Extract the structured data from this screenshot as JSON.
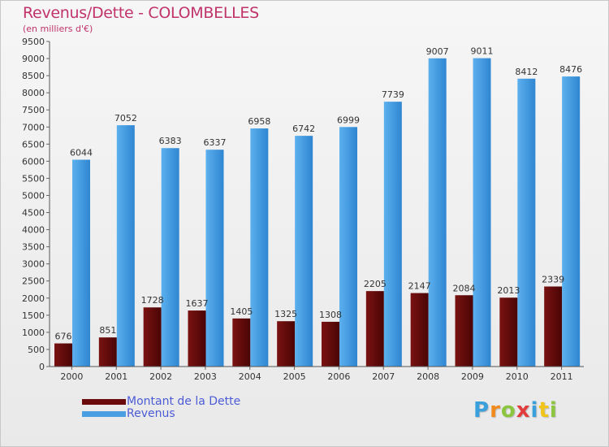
{
  "chart_data": {
    "type": "bar",
    "title": "Revenus/Dette - COLOMBELLES",
    "subtitle": "(en milliers d'€)",
    "categories": [
      "2000",
      "2001",
      "2002",
      "2003",
      "2004",
      "2005",
      "2006",
      "2007",
      "2008",
      "2009",
      "2010",
      "2011"
    ],
    "series": [
      {
        "name": "Montant de la Dette",
        "color": "#6b0a0a",
        "values": [
          676,
          851,
          1728,
          1637,
          1405,
          1325,
          1308,
          2205,
          2147,
          2084,
          2013,
          2339
        ]
      },
      {
        "name": "Revenus",
        "color": "#4a9fe3",
        "values": [
          6044,
          7052,
          6383,
          6337,
          6958,
          6742,
          6999,
          7739,
          9007,
          9011,
          8412,
          8476
        ]
      }
    ],
    "yticks": [
      0,
      500,
      1000,
      1500,
      2000,
      2500,
      3000,
      3500,
      4000,
      4500,
      5000,
      5500,
      6000,
      6500,
      7000,
      7500,
      8000,
      8500,
      9000,
      9500
    ],
    "ylim": [
      0,
      9500
    ],
    "grid": false,
    "legend_position": "bottom-left"
  },
  "branding": {
    "logo_letters": [
      {
        "ch": "P",
        "color": "#3aa0dc"
      },
      {
        "ch": "r",
        "color": "#f08a1c"
      },
      {
        "ch": "o",
        "color": "#8cc63f"
      },
      {
        "ch": "x",
        "color": "#e23c3c"
      },
      {
        "ch": "i",
        "color": "#3aa0dc"
      },
      {
        "ch": "t",
        "color": "#f0c419"
      },
      {
        "ch": "i",
        "color": "#8cc63f"
      }
    ]
  }
}
